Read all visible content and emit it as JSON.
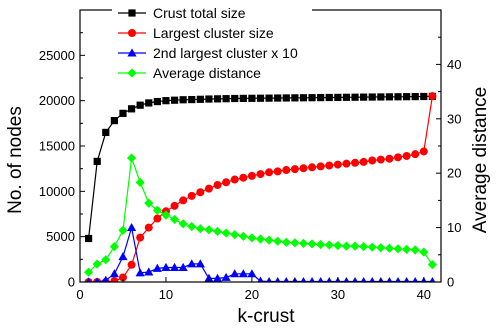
{
  "chart_data": {
    "type": "line",
    "title": "",
    "xlabel": "k-crust",
    "ylabel_left": "No. of nodes",
    "ylabel_right": "Average distance",
    "xlim": [
      0,
      42
    ],
    "ylim_left": [
      0,
      30000
    ],
    "ylim_right": [
      0,
      50
    ],
    "xticks": [
      0,
      10,
      20,
      30,
      40
    ],
    "yticks_left": [
      0,
      5000,
      10000,
      15000,
      20000,
      25000
    ],
    "yticks_right": [
      0,
      10,
      20,
      30,
      40
    ],
    "grid": false,
    "legend_position": "top-center",
    "series": [
      {
        "name": "Crust total size",
        "axis": "left",
        "color": "#000000",
        "marker": "square",
        "x": [
          1,
          2,
          3,
          4,
          5,
          6,
          7,
          8,
          9,
          10,
          11,
          12,
          13,
          14,
          15,
          16,
          17,
          18,
          19,
          20,
          21,
          22,
          23,
          24,
          25,
          26,
          27,
          28,
          29,
          30,
          31,
          32,
          33,
          34,
          35,
          36,
          37,
          38,
          39,
          40,
          41
        ],
        "values": [
          4800,
          13300,
          16500,
          17800,
          18600,
          19100,
          19500,
          19750,
          19900,
          20000,
          20050,
          20100,
          20120,
          20150,
          20180,
          20200,
          20220,
          20240,
          20250,
          20260,
          20270,
          20280,
          20290,
          20300,
          20310,
          20320,
          20330,
          20340,
          20350,
          20360,
          20370,
          20380,
          20390,
          20400,
          20410,
          20420,
          20430,
          20440,
          20450,
          20460,
          20470
        ]
      },
      {
        "name": "Largest cluster size",
        "axis": "left",
        "color": "#ff0000",
        "marker": "circle",
        "x": [
          1,
          2,
          3,
          4,
          5,
          6,
          7,
          8,
          9,
          10,
          11,
          12,
          13,
          14,
          15,
          16,
          17,
          18,
          19,
          20,
          21,
          22,
          23,
          24,
          25,
          26,
          27,
          28,
          29,
          30,
          31,
          32,
          33,
          34,
          35,
          36,
          37,
          38,
          39,
          40,
          41
        ],
        "values": [
          0,
          0,
          0,
          100,
          500,
          1900,
          4900,
          6000,
          7000,
          7800,
          8400,
          9000,
          9500,
          9900,
          10300,
          10700,
          11000,
          11300,
          11500,
          11700,
          11900,
          12100,
          12200,
          12350,
          12450,
          12550,
          12650,
          12750,
          12850,
          12950,
          13050,
          13150,
          13250,
          13400,
          13500,
          13600,
          13750,
          13900,
          14100,
          14400,
          20500
        ]
      },
      {
        "name": "2nd largest cluster x 10",
        "axis": "left",
        "color": "#0000ff",
        "marker": "triangle",
        "x": [
          1,
          2,
          3,
          4,
          5,
          6,
          7,
          8,
          9,
          10,
          11,
          12,
          13,
          14,
          15,
          16,
          17,
          18,
          19,
          20,
          21,
          22,
          23,
          24,
          25,
          26,
          27,
          28,
          29,
          30,
          31,
          32,
          33,
          34,
          35,
          36,
          37,
          38,
          39,
          40,
          41
        ],
        "values": [
          0,
          0,
          200,
          900,
          2800,
          6000,
          1000,
          1100,
          1500,
          1600,
          1600,
          1600,
          2000,
          2000,
          400,
          400,
          500,
          900,
          900,
          900,
          100,
          50,
          50,
          50,
          50,
          50,
          50,
          50,
          50,
          50,
          50,
          50,
          50,
          50,
          50,
          50,
          50,
          50,
          50,
          50,
          50
        ]
      },
      {
        "name": "Average distance",
        "axis": "right",
        "color": "#00ff00",
        "marker": "diamond",
        "x": [
          1,
          2,
          3,
          4,
          5,
          6,
          7,
          8,
          9,
          10,
          11,
          12,
          13,
          14,
          15,
          16,
          17,
          18,
          19,
          20,
          21,
          22,
          23,
          24,
          25,
          26,
          27,
          28,
          29,
          30,
          31,
          32,
          33,
          34,
          35,
          36,
          37,
          38,
          39,
          40,
          41
        ],
        "values": [
          1.8,
          3.3,
          4.1,
          6.5,
          9.5,
          22.8,
          18.3,
          14.5,
          13.2,
          12.3,
          11.5,
          10.7,
          10.2,
          9.8,
          9.6,
          9.3,
          9.0,
          8.7,
          8.4,
          8.1,
          7.9,
          7.7,
          7.5,
          7.3,
          7.2,
          7.1,
          7.0,
          6.9,
          6.8,
          6.7,
          6.6,
          6.6,
          6.5,
          6.4,
          6.3,
          6.2,
          6.1,
          6.0,
          5.9,
          5.5,
          3.2
        ]
      }
    ]
  }
}
